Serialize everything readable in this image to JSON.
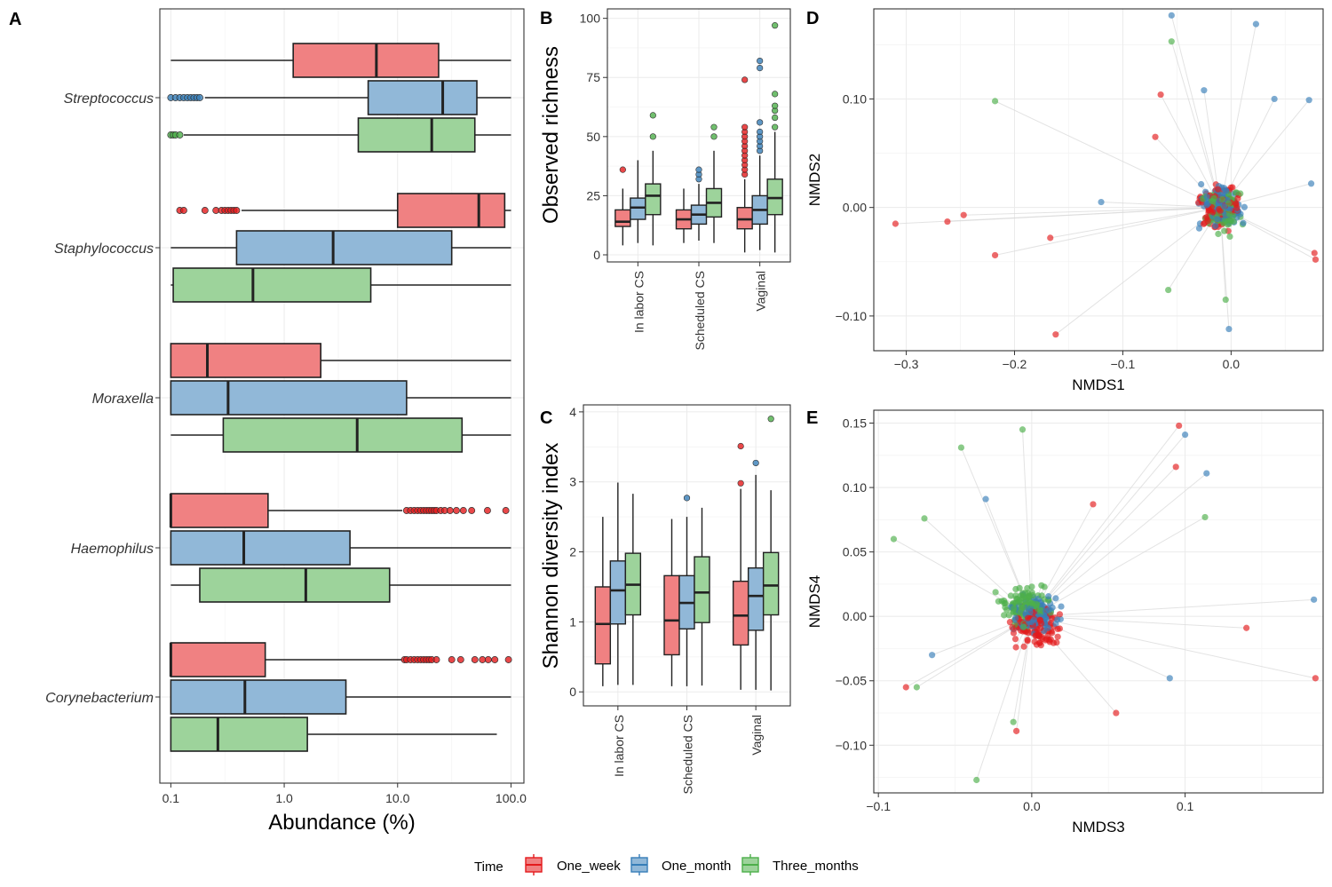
{
  "colors": {
    "One_week": "#e41a1c",
    "One_month": "#377eb8",
    "Three_months": "#4daf4a",
    "line": "#d9d9d9",
    "box_fill_opacity": 0.55
  },
  "legend": {
    "title": "Time",
    "labels": [
      "One_week",
      "One_month",
      "Three_months"
    ]
  },
  "chart_data": [
    {
      "panel": "A",
      "type": "boxplot-horizontal",
      "xlabel": "Abundance (%)",
      "xscale": "log10",
      "xlim": [
        0.08,
        130
      ],
      "xticks": [
        0.1,
        1,
        10,
        100
      ],
      "xtick_labels": [
        "0.1",
        "1.0",
        "10.0",
        "100.0"
      ],
      "groups": [
        {
          "genus": "Streptococcus",
          "boxes": [
            {
              "time": "One_week",
              "min": 0.1,
              "q1": 1.2,
              "median": 6.5,
              "q3": 23,
              "max": 100,
              "outliers": []
            },
            {
              "time": "One_month",
              "min": 0.2,
              "q1": 5.5,
              "median": 25,
              "q3": 50,
              "max": 100,
              "outliers": [
                0.1,
                0.11,
                0.12,
                0.13,
                0.14,
                0.15,
                0.16,
                0.17,
                0.18
              ]
            },
            {
              "time": "Three_months",
              "min": 0.13,
              "q1": 4.5,
              "median": 20,
              "q3": 48,
              "max": 100,
              "outliers": [
                0.1,
                0.105,
                0.11,
                0.12
              ]
            }
          ]
        },
        {
          "genus": "Staphylococcus",
          "boxes": [
            {
              "time": "One_week",
              "min": 0.42,
              "q1": 10,
              "median": 52,
              "q3": 88,
              "max": 100,
              "outliers": [
                0.12,
                0.13,
                0.2,
                0.25,
                0.28,
                0.3,
                0.32,
                0.34,
                0.36,
                0.38
              ]
            },
            {
              "time": "One_month",
              "min": 0.1,
              "q1": 0.38,
              "median": 2.7,
              "q3": 30,
              "max": 100,
              "outliers": []
            },
            {
              "time": "Three_months",
              "min": 0.1,
              "q1": 0.105,
              "median": 0.53,
              "q3": 5.8,
              "max": 100,
              "outliers": []
            }
          ]
        },
        {
          "genus": "Moraxella",
          "boxes": [
            {
              "time": "One_week",
              "min": 0.1,
              "q1": 0.1,
              "median": 0.21,
              "q3": 2.1,
              "max": 100,
              "outliers": []
            },
            {
              "time": "One_month",
              "min": 0.1,
              "q1": 0.1,
              "median": 0.32,
              "q3": 12,
              "max": 100,
              "outliers": []
            },
            {
              "time": "Three_months",
              "min": 0.1,
              "q1": 0.29,
              "median": 4.4,
              "q3": 37,
              "max": 100,
              "outliers": []
            }
          ]
        },
        {
          "genus": "Haemophilus",
          "boxes": [
            {
              "time": "One_week",
              "min": 0.1,
              "q1": 0.1,
              "median": 0.1,
              "q3": 0.72,
              "max": 11,
              "outliers": [
                12,
                13,
                14,
                15,
                16,
                17,
                18,
                19,
                20,
                21,
                22,
                24,
                26,
                29,
                33,
                38,
                45,
                62,
                90
              ]
            },
            {
              "time": "One_month",
              "min": 0.1,
              "q1": 0.1,
              "median": 0.44,
              "q3": 3.8,
              "max": 100,
              "outliers": []
            },
            {
              "time": "Three_months",
              "min": 0.1,
              "q1": 0.18,
              "median": 1.55,
              "q3": 8.5,
              "max": 100,
              "outliers": []
            }
          ]
        },
        {
          "genus": "Corynebacterium",
          "boxes": [
            {
              "time": "One_week",
              "min": 0.1,
              "q1": 0.1,
              "median": 0.1,
              "q3": 0.68,
              "max": 11,
              "outliers": [
                11.5,
                12,
                13,
                14,
                15,
                16,
                17,
                18,
                19,
                20,
                22,
                30,
                36,
                48,
                56,
                63,
                72,
                95
              ]
            },
            {
              "time": "One_month",
              "min": 0.1,
              "q1": 0.1,
              "median": 0.45,
              "q3": 3.5,
              "max": 100,
              "outliers": []
            },
            {
              "time": "Three_months",
              "min": 0.1,
              "q1": 0.1,
              "median": 0.26,
              "q3": 1.6,
              "max": 75,
              "outliers": []
            }
          ]
        }
      ]
    },
    {
      "panel": "B",
      "type": "boxplot",
      "ylabel": "Observed richness",
      "ylim": [
        -3,
        104
      ],
      "yticks": [
        0,
        25,
        50,
        75,
        100
      ],
      "categories": [
        "In labor CS",
        "Scheduled CS",
        "Vaginal"
      ],
      "groups": [
        {
          "category": "In labor CS",
          "boxes": [
            {
              "time": "One_week",
              "min": 4,
              "q1": 12,
              "median": 14,
              "q3": 19,
              "max": 28,
              "outliers": [
                36
              ]
            },
            {
              "time": "One_month",
              "min": 5,
              "q1": 15,
              "median": 20,
              "q3": 24,
              "max": 40,
              "outliers": []
            },
            {
              "time": "Three_months",
              "min": 4,
              "q1": 17,
              "median": 25,
              "q3": 30,
              "max": 44,
              "outliers": [
                50,
                59
              ]
            }
          ]
        },
        {
          "category": "Scheduled CS",
          "boxes": [
            {
              "time": "One_week",
              "min": 5,
              "q1": 11,
              "median": 15,
              "q3": 19,
              "max": 28,
              "outliers": []
            },
            {
              "time": "One_month",
              "min": 6,
              "q1": 13,
              "median": 17,
              "q3": 21,
              "max": 30,
              "outliers": [
                32,
                34,
                36
              ]
            },
            {
              "time": "Three_months",
              "min": 5,
              "q1": 16,
              "median": 22,
              "q3": 28,
              "max": 44,
              "outliers": [
                50,
                54
              ]
            }
          ]
        },
        {
          "category": "Vaginal",
          "boxes": [
            {
              "time": "One_week",
              "min": 1,
              "q1": 11,
              "median": 15,
              "q3": 20,
              "max": 32,
              "outliers": [
                34,
                36,
                38,
                40,
                42,
                44,
                46,
                48,
                50,
                52,
                54,
                74
              ]
            },
            {
              "time": "One_month",
              "min": 2,
              "q1": 13,
              "median": 19,
              "q3": 25,
              "max": 42,
              "outliers": [
                44,
                46,
                48,
                50,
                52,
                56,
                79,
                82
              ]
            },
            {
              "time": "Three_months",
              "min": 1,
              "q1": 17,
              "median": 24,
              "q3": 32,
              "max": 52,
              "outliers": [
                54,
                58,
                61,
                63,
                68,
                97
              ]
            }
          ]
        }
      ]
    },
    {
      "panel": "C",
      "type": "boxplot",
      "ylabel": "Shannon diversity index",
      "ylim": [
        -0.2,
        4.1
      ],
      "yticks": [
        0,
        1,
        2,
        3,
        4
      ],
      "categories": [
        "In labor CS",
        "Scheduled CS",
        "Vaginal"
      ],
      "groups": [
        {
          "category": "In labor CS",
          "boxes": [
            {
              "time": "One_week",
              "min": 0.08,
              "q1": 0.4,
              "median": 0.97,
              "q3": 1.5,
              "max": 2.5,
              "outliers": []
            },
            {
              "time": "One_month",
              "min": 0.1,
              "q1": 0.97,
              "median": 1.45,
              "q3": 1.87,
              "max": 2.99,
              "outliers": []
            },
            {
              "time": "Three_months",
              "min": 0.1,
              "q1": 1.1,
              "median": 1.53,
              "q3": 1.98,
              "max": 2.83,
              "outliers": []
            }
          ]
        },
        {
          "category": "Scheduled CS",
          "boxes": [
            {
              "time": "One_week",
              "min": 0.08,
              "q1": 0.53,
              "median": 1.02,
              "q3": 1.66,
              "max": 2.47,
              "outliers": []
            },
            {
              "time": "One_month",
              "min": 0.08,
              "q1": 0.9,
              "median": 1.27,
              "q3": 1.66,
              "max": 2.5,
              "outliers": [
                2.77
              ]
            },
            {
              "time": "Three_months",
              "min": 0.09,
              "q1": 0.99,
              "median": 1.42,
              "q3": 1.93,
              "max": 2.63,
              "outliers": []
            }
          ]
        },
        {
          "category": "Vaginal",
          "boxes": [
            {
              "time": "One_week",
              "min": 0.03,
              "q1": 0.67,
              "median": 1.09,
              "q3": 1.58,
              "max": 2.9,
              "outliers": [
                2.98,
                3.51
              ]
            },
            {
              "time": "One_month",
              "min": 0.03,
              "q1": 0.88,
              "median": 1.37,
              "q3": 1.77,
              "max": 3.1,
              "outliers": [
                3.27
              ]
            },
            {
              "time": "Three_months",
              "min": 0.02,
              "q1": 1.1,
              "median": 1.52,
              "q3": 1.99,
              "max": 2.88,
              "outliers": [
                3.9
              ]
            }
          ]
        }
      ]
    },
    {
      "panel": "D",
      "type": "scatter",
      "xlabel": "NMDS1",
      "ylabel": "NMDS2",
      "xlim": [
        -0.33,
        0.085
      ],
      "ylim": [
        -0.132,
        0.183
      ],
      "xticks": [
        -0.3,
        -0.2,
        -0.1,
        0.0
      ],
      "xtick_labels": [
        "−0.3",
        "−0.2",
        "−0.1",
        "0.0"
      ],
      "yticks": [
        -0.1,
        0.0,
        0.1
      ],
      "ytick_labels": [
        "−0.10",
        "0.00",
        "0.10"
      ],
      "center": [
        -0.01,
        0.0
      ],
      "points": [
        {
          "time": "One_week",
          "x": -0.31,
          "y": -0.015
        },
        {
          "time": "One_week",
          "x": -0.262,
          "y": -0.013
        },
        {
          "time": "One_week",
          "x": -0.247,
          "y": -0.007
        },
        {
          "time": "One_week",
          "x": -0.218,
          "y": -0.044
        },
        {
          "time": "One_week",
          "x": -0.167,
          "y": -0.028
        },
        {
          "time": "One_week",
          "x": -0.162,
          "y": -0.117
        },
        {
          "time": "One_week",
          "x": -0.065,
          "y": 0.104
        },
        {
          "time": "One_week",
          "x": -0.07,
          "y": 0.065
        },
        {
          "time": "One_week",
          "x": 0.077,
          "y": -0.042
        },
        {
          "time": "One_week",
          "x": 0.078,
          "y": -0.048
        },
        {
          "time": "One_month",
          "x": -0.055,
          "y": 0.177
        },
        {
          "time": "One_month",
          "x": 0.023,
          "y": 0.169
        },
        {
          "time": "One_month",
          "x": -0.025,
          "y": 0.108
        },
        {
          "time": "One_month",
          "x": 0.04,
          "y": 0.1
        },
        {
          "time": "One_month",
          "x": 0.072,
          "y": 0.099
        },
        {
          "time": "One_month",
          "x": -0.002,
          "y": -0.112
        },
        {
          "time": "One_month",
          "x": 0.074,
          "y": 0.022
        },
        {
          "time": "One_month",
          "x": -0.12,
          "y": 0.005
        },
        {
          "time": "Three_months",
          "x": -0.055,
          "y": 0.153
        },
        {
          "time": "Three_months",
          "x": -0.218,
          "y": 0.098
        },
        {
          "time": "Three_months",
          "x": -0.058,
          "y": -0.076
        },
        {
          "time": "Three_months",
          "x": -0.005,
          "y": -0.085
        }
      ]
    },
    {
      "panel": "E",
      "type": "scatter",
      "xlabel": "NMDS3",
      "ylabel": "NMDS4",
      "xlim": [
        -0.103,
        0.19
      ],
      "ylim": [
        -0.137,
        0.16
      ],
      "xticks": [
        -0.1,
        0.0,
        0.1
      ],
      "xtick_labels": [
        "−0.1",
        "0.0",
        "0.1"
      ],
      "yticks": [
        -0.1,
        -0.05,
        0.0,
        0.05,
        0.1,
        0.15
      ],
      "ytick_labels": [
        "−0.10",
        "−0.05",
        "0.00",
        "0.05",
        "0.10",
        "0.15"
      ],
      "center": [
        0.0,
        0.0
      ],
      "points": [
        {
          "time": "One_week",
          "x": 0.096,
          "y": 0.148
        },
        {
          "time": "One_week",
          "x": 0.094,
          "y": 0.116
        },
        {
          "time": "One_week",
          "x": 0.14,
          "y": -0.009
        },
        {
          "time": "One_week",
          "x": 0.185,
          "y": -0.048
        },
        {
          "time": "One_week",
          "x": -0.082,
          "y": -0.055
        },
        {
          "time": "One_week",
          "x": -0.01,
          "y": -0.089
        },
        {
          "time": "One_week",
          "x": 0.055,
          "y": -0.075
        },
        {
          "time": "One_week",
          "x": 0.04,
          "y": 0.087
        },
        {
          "time": "One_month",
          "x": 0.1,
          "y": 0.141
        },
        {
          "time": "One_month",
          "x": 0.114,
          "y": 0.111
        },
        {
          "time": "One_month",
          "x": 0.184,
          "y": 0.013
        },
        {
          "time": "One_month",
          "x": -0.03,
          "y": 0.091
        },
        {
          "time": "One_month",
          "x": 0.09,
          "y": -0.048
        },
        {
          "time": "One_month",
          "x": -0.065,
          "y": -0.03
        },
        {
          "time": "Three_months",
          "x": -0.006,
          "y": 0.145
        },
        {
          "time": "Three_months",
          "x": -0.046,
          "y": 0.131
        },
        {
          "time": "Three_months",
          "x": -0.09,
          "y": 0.06
        },
        {
          "time": "Three_months",
          "x": -0.07,
          "y": 0.076
        },
        {
          "time": "Three_months",
          "x": 0.113,
          "y": 0.077
        },
        {
          "time": "Three_months",
          "x": -0.036,
          "y": -0.127
        },
        {
          "time": "Three_months",
          "x": -0.012,
          "y": -0.082
        },
        {
          "time": "Three_months",
          "x": -0.075,
          "y": -0.055
        }
      ]
    }
  ]
}
